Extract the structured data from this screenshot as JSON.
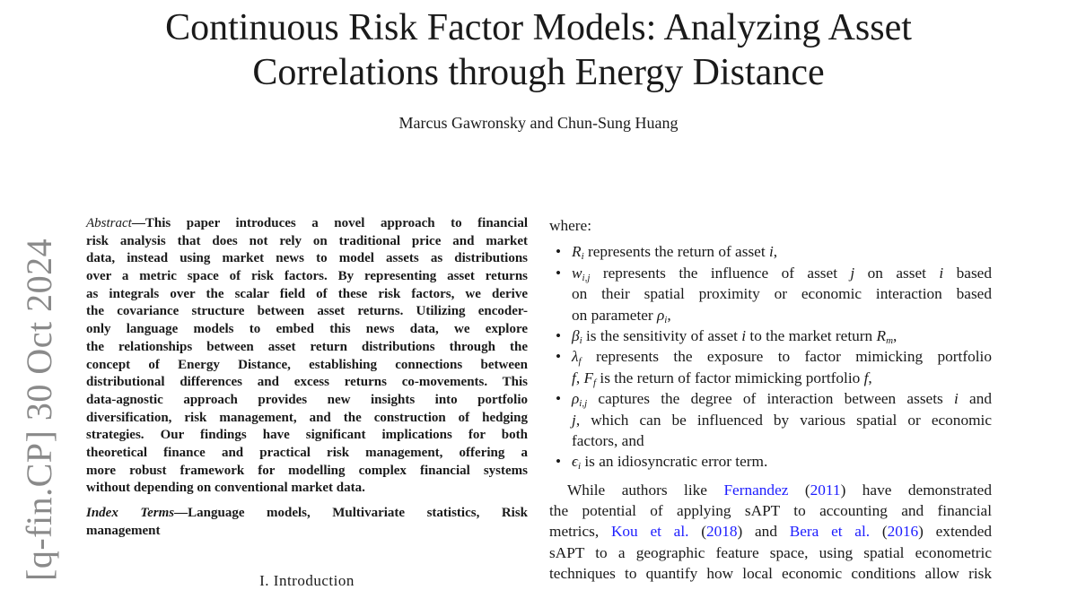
{
  "title": [
    "Continuous Risk Factor Models: Analyzing Asset",
    "Correlations through Energy Distance"
  ],
  "authors": "Marcus Gawronsky and Chun-Sung Huang",
  "watermark": "[q-fin.CP]  30 Oct 2024",
  "abstract": {
    "label": "Abstract",
    "lines": [
      "—This paper introduces a novel approach to financial",
      "risk analysis that does not rely on traditional price and market",
      "data, instead using market news to model assets as distributions",
      "over a metric space of risk factors. By representing asset returns",
      "as integrals over the scalar field of these risk factors, we derive",
      "the covariance structure between asset returns. Utilizing encoder-",
      "only language models to embed this news data, we explore",
      "the relationships between asset return distributions through the",
      "concept of Energy Distance, establishing connections between",
      "distributional differences and excess returns co-movements. This",
      "data-agnostic approach provides new insights into portfolio",
      "diversification, risk management, and the construction of hedging",
      "strategies. Our findings have significant implications for both",
      "theoretical finance and practical risk management, offering a",
      "more robust framework for modelling complex financial systems",
      "without depending on conventional market data."
    ]
  },
  "index_terms": {
    "label": "Index Terms",
    "lines": [
      "—Language models, Multivariate statistics, Risk",
      "management"
    ]
  },
  "section_heading": "I. Introduction",
  "right": {
    "where": "where:",
    "items": [
      [
        [
          [
            "R",
            "m"
          ],
          [
            "i",
            "sub"
          ],
          [
            " represents the return of asset ",
            ""
          ],
          [
            "i",
            "m"
          ],
          [
            ",",
            ""
          ]
        ]
      ],
      [
        [
          [
            "w",
            "m"
          ],
          [
            "i,j",
            "sub"
          ],
          [
            " represents the influence of asset ",
            ""
          ],
          [
            "j",
            "m"
          ],
          [
            " on asset ",
            ""
          ],
          [
            "i",
            "m"
          ],
          [
            " based",
            ""
          ]
        ],
        [
          [
            "on their spatial proximity or economic interaction based",
            ""
          ]
        ],
        [
          [
            "on parameter ",
            ""
          ],
          [
            "ρ",
            "m"
          ],
          [
            "i",
            "sub"
          ],
          [
            ",",
            ""
          ]
        ]
      ],
      [
        [
          [
            "β",
            "m"
          ],
          [
            "i",
            "sub"
          ],
          [
            " is the sensitivity of asset ",
            ""
          ],
          [
            "i",
            "m"
          ],
          [
            " to the market return ",
            ""
          ],
          [
            "R",
            "m"
          ],
          [
            "m",
            "sub"
          ],
          [
            ",",
            ""
          ]
        ]
      ],
      [
        [
          [
            "λ",
            "m"
          ],
          [
            "f",
            "sub"
          ],
          [
            " represents the exposure to factor mimicking portfolio",
            ""
          ]
        ],
        [
          [
            "f",
            "m"
          ],
          [
            ", ",
            ""
          ],
          [
            "F",
            "m"
          ],
          [
            "f",
            "sub"
          ],
          [
            " is the return of factor mimicking portfolio ",
            ""
          ],
          [
            "f",
            "m"
          ],
          [
            ",",
            ""
          ]
        ]
      ],
      [
        [
          [
            "ρ",
            "m"
          ],
          [
            "i,j",
            "sub"
          ],
          [
            " captures the degree of interaction between assets ",
            ""
          ],
          [
            "i",
            "m"
          ],
          [
            " and",
            ""
          ]
        ],
        [
          [
            "j",
            "m"
          ],
          [
            ", which can be influenced by various spatial or economic",
            ""
          ]
        ],
        [
          [
            "factors, and",
            ""
          ]
        ]
      ],
      [
        [
          [
            "ϵ",
            "m"
          ],
          [
            "i",
            "sub"
          ],
          [
            " is an idiosyncratic error term.",
            ""
          ]
        ]
      ]
    ],
    "paragraph": [
      [
        [
          "While authors like ",
          ""
        ],
        [
          "Fernandez",
          "link"
        ],
        [
          " (",
          ""
        ],
        [
          "2011",
          "link"
        ],
        [
          ") have demonstrated",
          ""
        ]
      ],
      [
        [
          "the potential of applying sAPT to accounting and financial",
          ""
        ]
      ],
      [
        [
          "metrics, ",
          ""
        ],
        [
          "Kou et al.",
          "link"
        ],
        [
          " (",
          ""
        ],
        [
          "2018",
          "link"
        ],
        [
          ") and ",
          ""
        ],
        [
          "Bera et al.",
          "link"
        ],
        [
          " (",
          ""
        ],
        [
          "2016",
          "link"
        ],
        [
          ") extended",
          ""
        ]
      ],
      [
        [
          "sAPT to a geographic feature space, using spatial econometric",
          ""
        ]
      ],
      [
        [
          "techniques to quantify how local economic conditions allow risk",
          ""
        ]
      ]
    ]
  },
  "colors": {
    "link": "#1d1dff",
    "watermark": "#8a8a8a",
    "text": "#1a1a1a"
  }
}
